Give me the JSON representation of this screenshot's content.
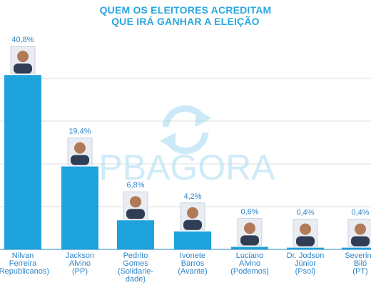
{
  "header": {
    "title_line1": "QUEM OS ELEITORES ACREDITAM",
    "title_line2": "QUE IRÁ GANHAR A ELEIÇÃO"
  },
  "watermark": {
    "text": "PBAGORA",
    "icon": "refresh-arrows-icon"
  },
  "colors": {
    "bar": "#1ea3dd",
    "text": "#2f86c8",
    "title": "#2aa7df",
    "grid": "#dcdcdc"
  },
  "chart_data": {
    "type": "bar",
    "title": "QUEM OS ELEITORES ACREDITAM QUE IRÁ GANHAR A ELEIÇÃO",
    "unit": "%",
    "ylim": [
      0,
      45
    ],
    "grid": true,
    "categories": [
      [
        "Nilvan",
        "Ferreira",
        "(Republicanos)"
      ],
      [
        "Jackson",
        "Alvino",
        "(PP)"
      ],
      [
        "Pedrito",
        "Gomes",
        "(Solidarie-",
        "dade)"
      ],
      [
        "Ivonete",
        "Barros",
        "(Avante)"
      ],
      [
        "Luciano",
        "Alvino",
        "(Podemos)"
      ],
      [
        "Dr. Jodson",
        "Júnior",
        "(Psol)"
      ],
      [
        "Severino",
        "Biló",
        "(PT)"
      ]
    ],
    "values": [
      40.8,
      19.4,
      6.8,
      4.2,
      0.6,
      0.4,
      0.4
    ],
    "value_labels": [
      "40,8%",
      "19,4%",
      "6,8%",
      "4,2%",
      "0,6%",
      "0,4%",
      "0,4%"
    ]
  }
}
